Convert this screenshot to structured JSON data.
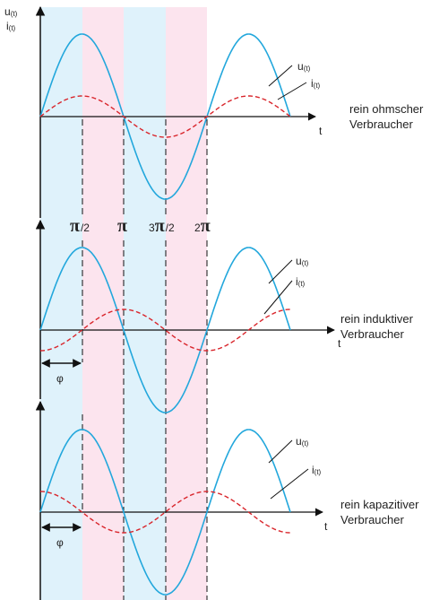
{
  "axis_labels": {
    "u_main": "u",
    "u_sub": "(t)",
    "i_main": "i",
    "i_sub": "(t)",
    "t": "t"
  },
  "phase_ticks": {
    "pi_half": {
      "sym": "π",
      "suffix": "/2"
    },
    "pi": {
      "sym": "π"
    },
    "three_pi_half": {
      "prefix": "3",
      "sym": "π",
      "suffix": "/2"
    },
    "two_pi": {
      "prefix": "2",
      "sym": "π"
    }
  },
  "phi_label": "φ",
  "panels": [
    {
      "description_line1": "rein ohmscher",
      "description_line2": "Verbraucher",
      "u_label": "u",
      "u_sub": "(t)",
      "i_label": "i",
      "i_sub": "(t)",
      "phase_shift_degrees": 0
    },
    {
      "description_line1": "rein induktiver",
      "description_line2": "Verbraucher",
      "u_label": "u",
      "u_sub": "(t)",
      "i_label": "i",
      "i_sub": "(t)",
      "phase_shift_degrees": -90
    },
    {
      "description_line1": "rein kapazitiver",
      "description_line2": "Verbraucher",
      "u_label": "u",
      "u_sub": "(t)",
      "i_label": "i",
      "i_sub": "(t)",
      "phase_shift_degrees": 90
    }
  ],
  "colors": {
    "voltage": "#22a7dc",
    "current": "#d9262c",
    "band_blue": "#dff2fb",
    "band_pink": "#fce4ee",
    "axis": "#111111"
  }
}
